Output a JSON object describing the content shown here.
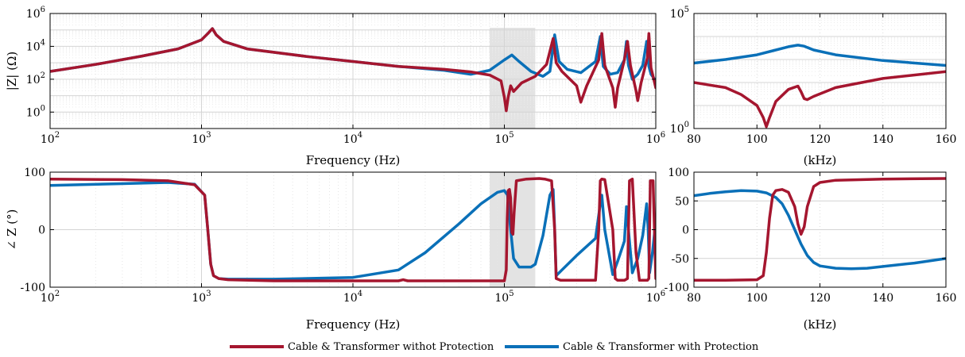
{
  "colors": {
    "without": "#a5162f",
    "with": "#0a70b8",
    "shade": "#e3e3e3"
  },
  "legend": {
    "without_label": "Cable & Transformer withot Protection",
    "with_label": "Cable & Transformer with Protection"
  },
  "chart_data": [
    {
      "type": "line",
      "id": "mag_full",
      "xlabel": "Frequency (Hz)",
      "ylabel": "|Z| (Ω)",
      "xscale": "log",
      "yscale": "log",
      "xlim": [
        100,
        1000000
      ],
      "ylim": [
        0.1,
        1000000
      ],
      "xticks": [
        100,
        1000,
        10000,
        100000,
        1000000
      ],
      "xtick_labels": [
        "10^2",
        "10^3",
        "10^4",
        "10^5",
        "10^6"
      ],
      "yticks": [
        1,
        100,
        10000,
        1000000
      ],
      "ytick_labels": [
        "10^0",
        "10^2",
        "10^4",
        "10^6"
      ],
      "shaded_region": [
        80000,
        160000
      ],
      "series": [
        {
          "name": "Cable & Transformer withot Protection",
          "x": [
            100,
            200,
            400,
            700,
            1000,
            1100,
            1180,
            1250,
            1400,
            2000,
            5000,
            10000,
            20000,
            40000,
            60000,
            80000,
            95000,
            100000,
            103000,
            106000,
            110000,
            115000,
            130000,
            160000,
            190000,
            210000,
            220000,
            240000,
            300000,
            320000,
            350000,
            420000,
            440000,
            460000,
            520000,
            540000,
            560000,
            620000,
            650000,
            680000,
            740000,
            760000,
            800000,
            880000,
            900000,
            930000,
            1000000
          ],
          "y": [
            300,
            800,
            2500,
            7000,
            25000,
            60000,
            120000,
            50000,
            20000,
            7000,
            2400,
            1200,
            600,
            400,
            280,
            180,
            80,
            8,
            1.2,
            8,
            40,
            18,
            60,
            150,
            800,
            30000,
            1000,
            300,
            40,
            4,
            40,
            1500,
            60000,
            700,
            30,
            2,
            30,
            1500,
            20000,
            700,
            20,
            5,
            60,
            2000,
            60000,
            500,
            30
          ]
        },
        {
          "name": "Cable & Transformer with Protection",
          "x": [
            100,
            200,
            400,
            700,
            1000,
            1100,
            1180,
            1250,
            1400,
            2000,
            5000,
            10000,
            20000,
            40000,
            60000,
            80000,
            100000,
            112000,
            125000,
            150000,
            180000,
            200000,
            215000,
            230000,
            260000,
            320000,
            400000,
            430000,
            450000,
            500000,
            560000,
            620000,
            640000,
            660000,
            700000,
            760000,
            820000,
            870000,
            900000,
            930000,
            1000000
          ],
          "y": [
            300,
            800,
            2500,
            7000,
            25000,
            60000,
            120000,
            50000,
            20000,
            7000,
            2400,
            1200,
            600,
            350,
            200,
            350,
            1500,
            3000,
            1200,
            300,
            150,
            300,
            50000,
            1200,
            400,
            250,
            1200,
            40000,
            600,
            200,
            250,
            1500,
            20000,
            700,
            100,
            200,
            700,
            20000,
            600,
            200,
            80
          ]
        }
      ]
    },
    {
      "type": "line",
      "id": "mag_zoom",
      "xlabel": "(kHz)",
      "yscale": "log",
      "xlim": [
        80,
        160
      ],
      "ylim": [
        1,
        100000
      ],
      "xticks": [
        80,
        100,
        120,
        140,
        160
      ],
      "yticks": [
        1,
        100000
      ],
      "ytick_labels": [
        "10^0",
        "10^5"
      ],
      "series": [
        {
          "name": "Cable & Transformer withot Protection",
          "x": [
            80,
            90,
            95,
            100,
            102,
            103,
            104,
            106,
            110,
            113,
            114,
            115,
            116,
            118,
            125,
            140,
            160
          ],
          "y": [
            100,
            60,
            30,
            10,
            3,
            1.2,
            3,
            15,
            50,
            70,
            40,
            20,
            18,
            25,
            60,
            150,
            300
          ]
        },
        {
          "name": "Cable & Transformer with Protection",
          "x": [
            80,
            90,
            100,
            105,
            110,
            113,
            115,
            118,
            125,
            140,
            160
          ],
          "y": [
            700,
            1000,
            1600,
            2400,
            3600,
            4200,
            3800,
            2600,
            1600,
            900,
            550
          ]
        }
      ]
    },
    {
      "type": "line",
      "id": "phase_full",
      "xlabel": "Frequency (Hz)",
      "ylabel": "∠ Z (°)",
      "xscale": "log",
      "xlim": [
        100,
        1000000
      ],
      "ylim": [
        -100,
        100
      ],
      "xticks": [
        100,
        1000,
        10000,
        100000,
        1000000
      ],
      "xtick_labels": [
        "10^2",
        "10^3",
        "10^4",
        "10^5",
        "10^6"
      ],
      "yticks": [
        -100,
        0,
        100
      ],
      "shaded_region": [
        80000,
        160000
      ],
      "series": [
        {
          "name": "Cable & Transformer withot Protection",
          "x": [
            100,
            300,
            600,
            900,
            1050,
            1100,
            1150,
            1200,
            1300,
            1500,
            3000,
            10000,
            20000,
            21500,
            23000,
            50000,
            80000,
            100000,
            103000,
            104500,
            106000,
            108000,
            110000,
            112000,
            114000,
            116000,
            120000,
            140000,
            170000,
            185000,
            205000,
            215000,
            220000,
            235000,
            280000,
            400000,
            420000,
            430000,
            440000,
            460000,
            520000,
            540000,
            560000,
            620000,
            650000,
            660000,
            670000,
            700000,
            740000,
            780000,
            830000,
            880000,
            900000,
            910000,
            920000,
            960000,
            1000000
          ],
          "y": [
            88,
            87,
            85,
            78,
            60,
            0,
            -60,
            -80,
            -85,
            -87,
            -89,
            -89,
            -89,
            -87,
            -89,
            -89,
            -89,
            -89,
            -70,
            20,
            68,
            70,
            55,
            -5,
            -8,
            30,
            85,
            88,
            89,
            88,
            85,
            0,
            -85,
            -88,
            -88,
            -88,
            0,
            85,
            88,
            87,
            0,
            -85,
            -88,
            -88,
            -85,
            0,
            85,
            88,
            -40,
            -88,
            -88,
            -88,
            -85,
            0,
            85,
            85,
            -85
          ]
        },
        {
          "name": "Cable & Transformer with Protection",
          "x": [
            100,
            300,
            600,
            900,
            1050,
            1100,
            1150,
            1200,
            1300,
            1500,
            3000,
            10000,
            20000,
            30000,
            50000,
            70000,
            90000,
            100000,
            105000,
            110000,
            115000,
            125000,
            150000,
            160000,
            180000,
            200000,
            210000,
            215000,
            220000,
            240000,
            300000,
            400000,
            430000,
            440000,
            460000,
            520000,
            560000,
            620000,
            640000,
            660000,
            700000,
            760000,
            820000,
            870000,
            890000,
            910000,
            950000,
            1000000
          ],
          "y": [
            77,
            80,
            82,
            79,
            60,
            0,
            -60,
            -80,
            -85,
            -86,
            -86,
            -83,
            -70,
            -40,
            10,
            45,
            65,
            68,
            60,
            0,
            -50,
            -65,
            -65,
            -60,
            -10,
            60,
            70,
            0,
            -80,
            -70,
            -45,
            -15,
            45,
            60,
            0,
            -78,
            -55,
            -20,
            40,
            0,
            -75,
            -50,
            -10,
            45,
            0,
            -75,
            -40,
            15
          ]
        }
      ]
    },
    {
      "type": "line",
      "id": "phase_zoom",
      "xlabel": "(kHz)",
      "xlim": [
        80,
        160
      ],
      "ylim": [
        -100,
        100
      ],
      "xticks": [
        80,
        100,
        120,
        140,
        160
      ],
      "yticks": [
        -100,
        -50,
        0,
        50,
        100
      ],
      "series": [
        {
          "name": "Cable & Transformer withot Protection",
          "x": [
            80,
            90,
            100,
            102,
            103,
            104,
            105,
            106,
            108,
            110,
            112,
            113,
            114,
            115,
            116,
            118,
            120,
            125,
            140,
            160
          ],
          "y": [
            -88,
            -88,
            -87,
            -80,
            -40,
            20,
            60,
            68,
            70,
            65,
            40,
            10,
            -8,
            5,
            40,
            75,
            82,
            86,
            88,
            89
          ]
        },
        {
          "name": "Cable & Transformer with Protection",
          "x": [
            80,
            85,
            90,
            95,
            100,
            103,
            106,
            108,
            110,
            112,
            114,
            116,
            118,
            120,
            125,
            130,
            135,
            140,
            150,
            160
          ],
          "y": [
            59,
            63,
            66,
            68,
            67,
            64,
            56,
            45,
            25,
            0,
            -25,
            -45,
            -57,
            -63,
            -67,
            -68,
            -67,
            -64,
            -58,
            -50
          ]
        }
      ]
    }
  ]
}
